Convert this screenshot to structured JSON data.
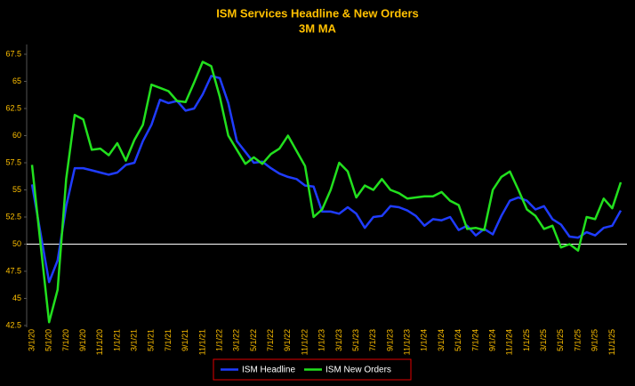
{
  "chart_data": {
    "type": "line",
    "title": "ISM Services Headline & New Orders",
    "subtitle": "3M MA",
    "categories": [
      "3/1/20",
      null,
      "5/1/20",
      null,
      "7/1/20",
      null,
      "9/1/20",
      null,
      "11/1/20",
      null,
      "1/1/21",
      null,
      "3/1/21",
      null,
      "5/1/21",
      null,
      "7/1/21",
      null,
      "9/1/21",
      null,
      "11/1/21",
      null,
      "1/1/22",
      null,
      "3/1/22",
      null,
      "5/1/22",
      null,
      "7/1/22",
      null,
      "9/1/22",
      null,
      "11/1/22",
      null,
      "1/1/23",
      null,
      "3/1/23",
      null,
      "5/1/23",
      null,
      "7/1/23",
      null,
      "9/1/23",
      null,
      "11/1/23",
      null,
      "1/1/24",
      null,
      "3/1/24",
      null,
      "5/1/24",
      null,
      "7/1/24",
      null,
      "9/1/24",
      null,
      "11/1/24",
      null,
      "1/1/25",
      null,
      "3/1/25",
      null,
      "5/1/25",
      null,
      "7/1/25",
      null,
      "9/1/25",
      null,
      "11/1/25",
      null
    ],
    "series": [
      {
        "name": "ISM Headline",
        "color": "#1f3cff",
        "values": [
          55.5,
          51,
          46.5,
          48.5,
          53.5,
          57,
          57,
          56.8,
          56.6,
          56.4,
          56.6,
          57.3,
          57.5,
          59.5,
          61,
          63.3,
          63,
          63.2,
          62.3,
          62.5,
          63.8,
          65.5,
          65.3,
          63,
          59.5,
          58.5,
          57.5,
          57.6,
          57,
          56.5,
          56.2,
          56,
          55.4,
          55.3,
          53,
          53,
          52.8,
          53.4,
          52.8,
          51.5,
          52.5,
          52.6,
          53.5,
          53.4,
          53.1,
          52.6,
          51.7,
          52.3,
          52.2,
          52.5,
          51.3,
          51.7,
          50.8,
          51.4,
          50.9,
          52.6,
          54,
          54.3,
          54,
          53.2,
          53.5,
          52.3,
          51.8,
          50.7,
          50.6,
          51.1,
          50.8,
          51.5,
          51.7,
          53.1
        ]
      },
      {
        "name": "ISM New Orders",
        "color": "#22e01e",
        "values": [
          57.3,
          50,
          42.8,
          45.8,
          56,
          61.9,
          61.5,
          58.7,
          58.8,
          58.2,
          59.3,
          57.7,
          59.6,
          61,
          64.7,
          64.4,
          64.1,
          63.2,
          63.1,
          64.9,
          66.8,
          66.4,
          63.6,
          60,
          58.7,
          57.4,
          58,
          57.4,
          58.3,
          58.8,
          60,
          58.6,
          57.2,
          52.5,
          53.2,
          55,
          57.5,
          56.7,
          54.3,
          55.4,
          55,
          56,
          55,
          54.7,
          54.2,
          54.3,
          54.4,
          54.4,
          54.8,
          54,
          53.6,
          51.4,
          51.5,
          51.3,
          55,
          56.2,
          56.7,
          55,
          53.2,
          52.6,
          51.4,
          51.7,
          49.7,
          50,
          49.4,
          52.5,
          52.3,
          54.2,
          53.3,
          55.7
        ]
      }
    ],
    "ylim": [
      42.5,
      67.5
    ],
    "yticks": [
      42.5,
      45,
      47.5,
      50,
      52.5,
      55,
      57.5,
      60,
      62.5,
      65,
      67.5
    ],
    "reference_line": 50,
    "grid": false,
    "legend": "bottom"
  }
}
